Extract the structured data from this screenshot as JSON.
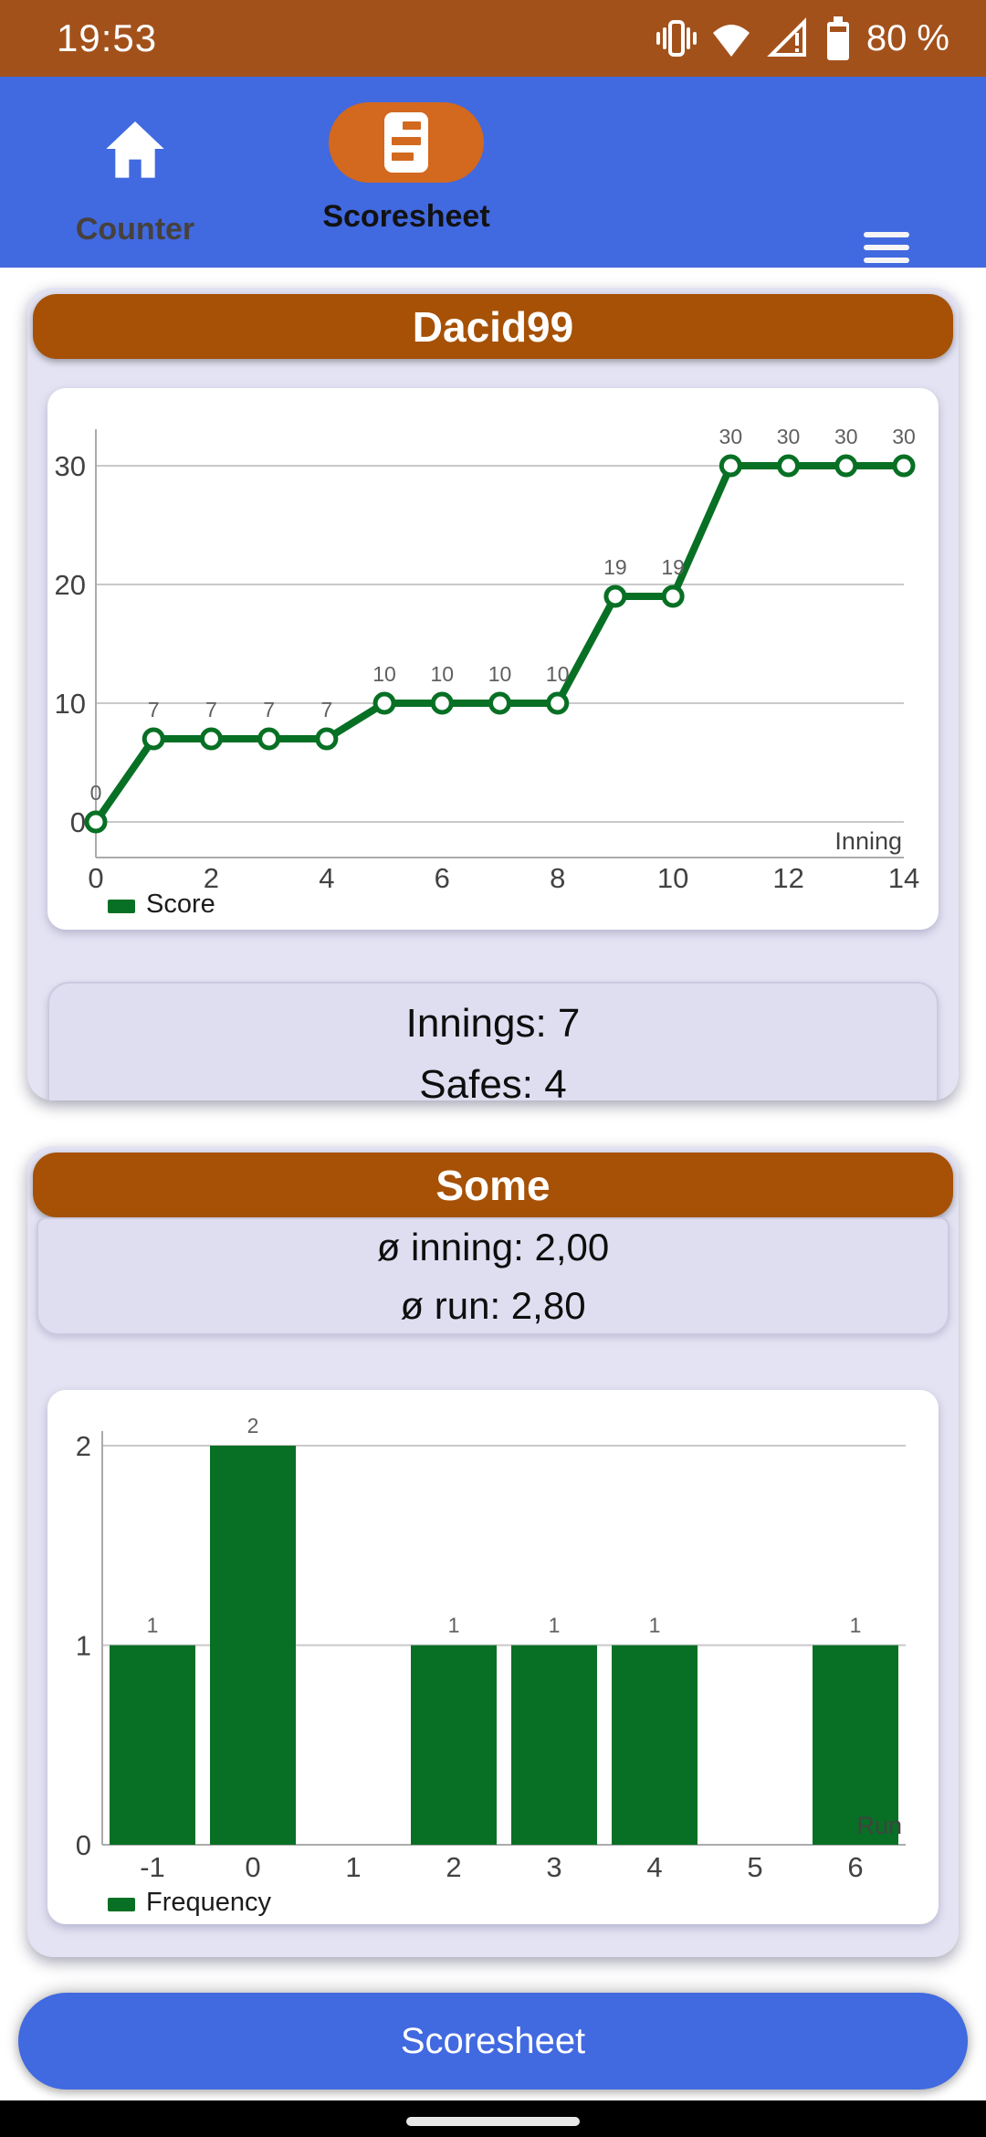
{
  "status_bar": {
    "time": "19:53",
    "battery_text": "80 %"
  },
  "nav": {
    "tabs": [
      {
        "label": "Counter"
      },
      {
        "label": "Scoresheet"
      }
    ]
  },
  "card1": {
    "title": "Dacid99",
    "stats": [
      "Innings: 7",
      "Safes: 4"
    ]
  },
  "card2": {
    "title": "Some",
    "stats": [
      "ø inning: 2,00",
      "ø run: 2,80"
    ]
  },
  "footer_button_label": "Scoresheet",
  "colors": {
    "accent_green": "#077024",
    "header_orange": "#A65106",
    "nav_blue": "#4169E0",
    "status_orange": "#A3511B",
    "grid": "#C9C9C9",
    "axis": "#ABABAB",
    "tick_text": "#424242",
    "value_label_text": "#5F5F5F",
    "legend_text": "#1C1C1C"
  },
  "chart_data": [
    {
      "type": "line",
      "x": [
        0,
        1,
        2,
        3,
        4,
        5,
        6,
        7,
        8,
        9,
        10,
        11,
        12,
        13,
        14
      ],
      "series": [
        {
          "name": "Score",
          "values": [
            0,
            7,
            7,
            7,
            7,
            10,
            10,
            10,
            10,
            19,
            19,
            30,
            30,
            30,
            30
          ]
        }
      ],
      "xticks": [
        0,
        2,
        4,
        6,
        8,
        10,
        12,
        14
      ],
      "yticks": [
        0,
        10,
        20,
        30
      ],
      "xlabel": "Inning",
      "ylabel": "",
      "xlim": [
        0,
        14
      ],
      "ylim": [
        0,
        33
      ],
      "grid": true,
      "point_labels": true,
      "legend_position": "bottom-left"
    },
    {
      "type": "bar",
      "categories": [
        "-1",
        "0",
        "1",
        "2",
        "3",
        "4",
        "5",
        "6"
      ],
      "values": [
        1,
        2,
        0,
        1,
        1,
        1,
        0,
        1
      ],
      "series_name": "Frequency",
      "xlabel": "Run",
      "ylabel": "",
      "yticks": [
        0,
        1,
        2
      ],
      "ylim": [
        0,
        2.3
      ],
      "grid": true,
      "bar_labels": true,
      "legend_position": "bottom-left"
    }
  ]
}
